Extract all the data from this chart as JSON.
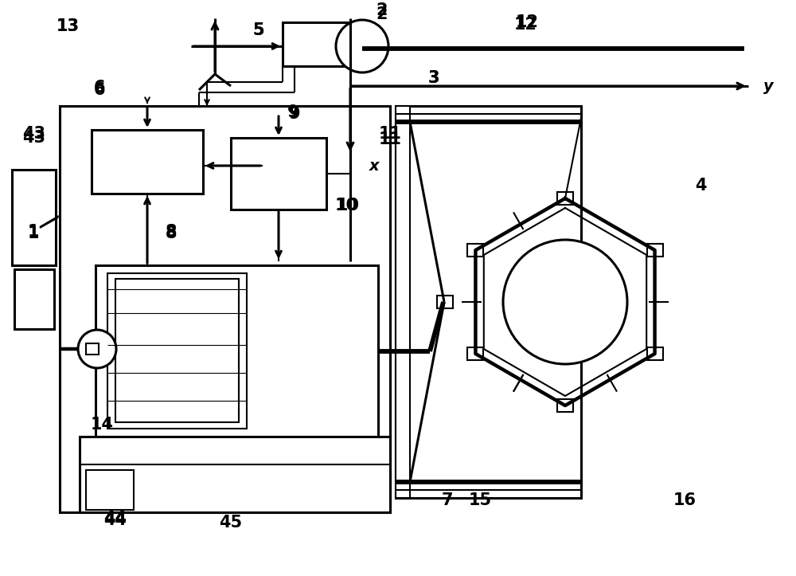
{
  "bg_color": "#ffffff",
  "lc": "#000000",
  "lw": 1.5,
  "lwt": 2.2,
  "fs": 13,
  "fw": "bold"
}
